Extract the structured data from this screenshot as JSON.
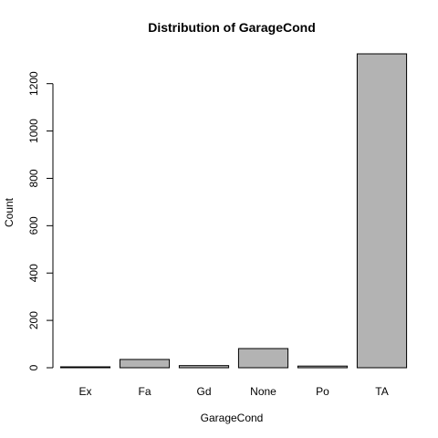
{
  "chart_data": {
    "type": "bar",
    "title": "Distribution of GarageCond",
    "xlabel": "GarageCond",
    "ylabel": "Count",
    "categories": [
      "Ex",
      "Fa",
      "Gd",
      "None",
      "Po",
      "TA"
    ],
    "values": [
      2,
      35,
      9,
      81,
      7,
      1326
    ],
    "ylim": [
      0,
      1326
    ],
    "yticks": [
      0,
      200,
      400,
      600,
      800,
      1000,
      1200
    ],
    "bar_color": "#b3b3b3",
    "grid": false,
    "legend": "none"
  }
}
